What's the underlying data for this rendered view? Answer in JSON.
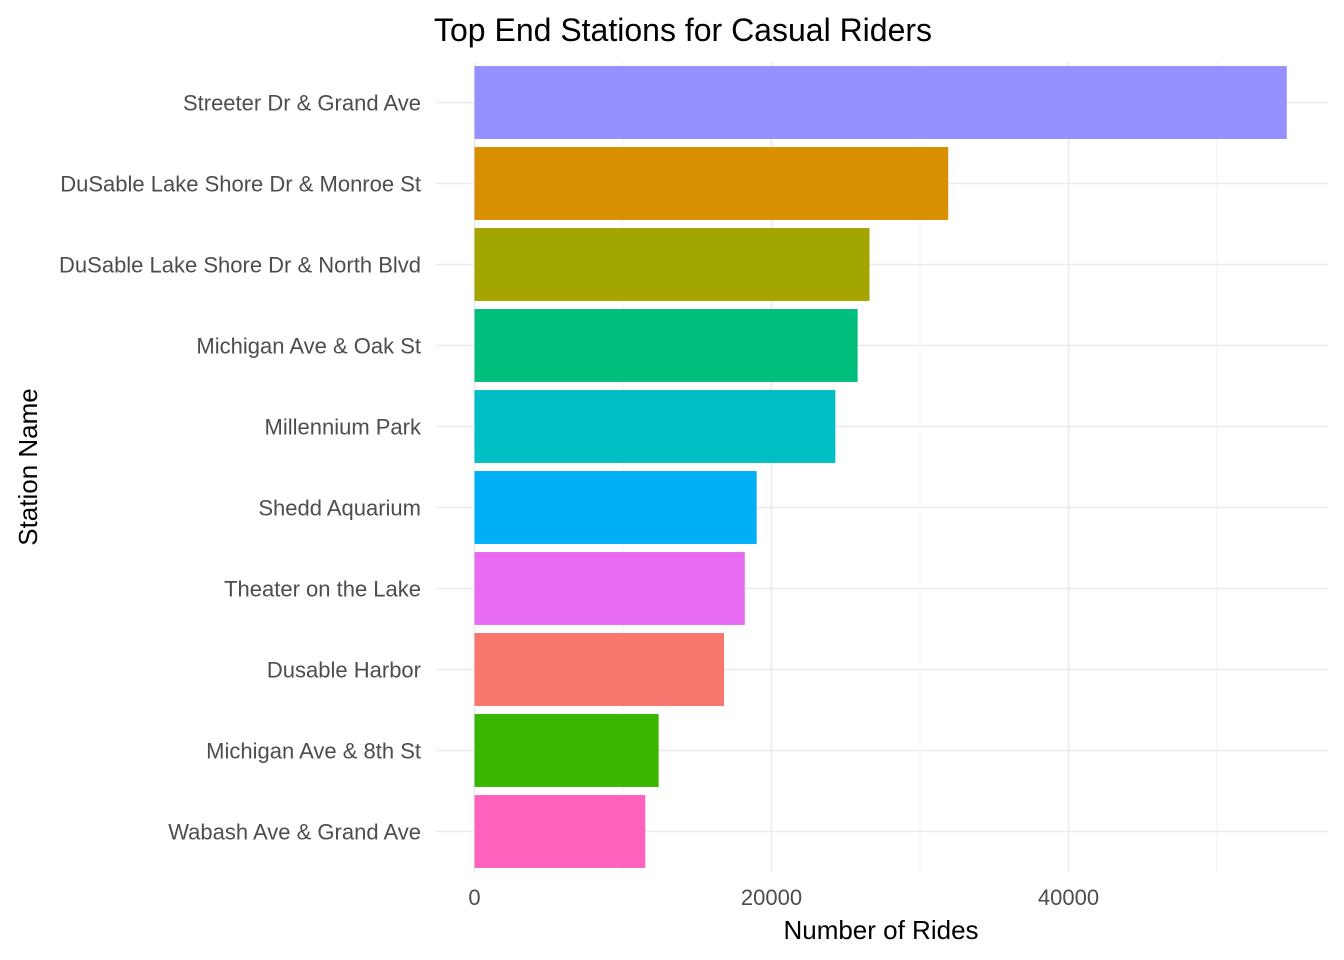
{
  "chart_data": {
    "type": "bar",
    "orientation": "horizontal",
    "title": "Top End Stations for Casual Riders",
    "xlabel": "Number of Rides",
    "ylabel": "Station Name",
    "xlim": [
      0,
      57500
    ],
    "x_ticks": [
      0,
      20000,
      40000
    ],
    "x_tick_labels": [
      "0",
      "20000",
      "40000"
    ],
    "grid": true,
    "legend": "none",
    "categories": [
      "Streeter Dr & Grand Ave",
      "DuSable Lake Shore Dr & Monroe St",
      "DuSable Lake Shore Dr & North Blvd",
      "Michigan Ave & Oak St",
      "Millennium Park",
      "Shedd Aquarium",
      "Theater on the Lake",
      "Dusable Harbor",
      "Michigan Ave & 8th St",
      "Wabash Ave & Grand Ave"
    ],
    "values": [
      54700,
      31900,
      26600,
      25800,
      24300,
      19000,
      18200,
      16800,
      12400,
      11500
    ],
    "colors": [
      "#9590FF",
      "#D89000",
      "#A3A500",
      "#00BF7D",
      "#00BFC4",
      "#00B0F6",
      "#E76BF3",
      "#F8766D",
      "#39B600",
      "#FF62BC"
    ]
  }
}
